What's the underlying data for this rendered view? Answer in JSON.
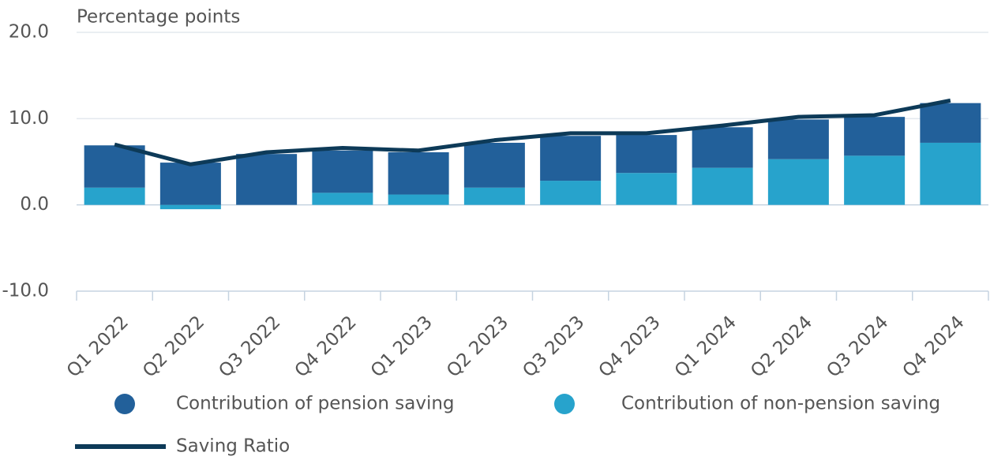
{
  "chart_data": {
    "type": "bar",
    "subtitle": "Percentage points",
    "categories": [
      "Q1 2022",
      "Q2 2022",
      "Q3 2022",
      "Q4 2022",
      "Q1 2023",
      "Q2 2023",
      "Q3 2023",
      "Q4 2023",
      "Q1 2024",
      "Q2 2024",
      "Q3 2024",
      "Q4 2024"
    ],
    "series": [
      {
        "name": "Contribution of non-pension saving",
        "color": "#27a3cc",
        "type": "bar",
        "values": [
          2.0,
          -0.5,
          0.0,
          1.4,
          1.2,
          2.0,
          2.8,
          3.7,
          4.3,
          5.3,
          5.7,
          7.2
        ]
      },
      {
        "name": "Contribution of pension saving",
        "color": "#22609a",
        "type": "bar",
        "values": [
          4.9,
          4.9,
          5.9,
          4.9,
          4.9,
          5.2,
          5.2,
          4.4,
          4.7,
          4.6,
          4.5,
          4.6
        ]
      },
      {
        "name": "Saving Ratio",
        "color": "#0d3a58",
        "type": "line",
        "values": [
          7.0,
          4.7,
          6.1,
          6.6,
          6.3,
          7.5,
          8.3,
          8.3,
          9.2,
          10.2,
          10.4,
          12.1
        ]
      }
    ],
    "ylim": [
      -10,
      20
    ],
    "yticks": [
      {
        "value": -10,
        "label": "-10.0"
      },
      {
        "value": 0,
        "label": "0.0"
      },
      {
        "value": 10,
        "label": "10.0"
      },
      {
        "value": 20,
        "label": "20.0"
      }
    ],
    "grid": true
  }
}
